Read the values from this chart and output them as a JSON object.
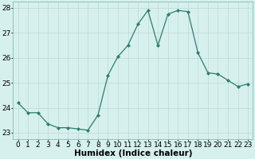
{
  "xlabel": "Humidex (Indice chaleur)",
  "x": [
    0,
    1,
    2,
    3,
    4,
    5,
    6,
    7,
    8,
    9,
    10,
    11,
    12,
    13,
    14,
    15,
    16,
    17,
    18,
    19,
    20,
    21,
    22,
    23
  ],
  "y": [
    24.2,
    23.8,
    23.8,
    23.35,
    23.2,
    23.2,
    23.15,
    23.1,
    23.7,
    25.3,
    26.05,
    26.5,
    27.35,
    27.9,
    26.5,
    27.75,
    27.9,
    27.85,
    26.2,
    25.4,
    25.35,
    25.1,
    24.85,
    24.95
  ],
  "ylim": [
    22.75,
    28.25
  ],
  "xlim": [
    -0.5,
    23.5
  ],
  "yticks": [
    23,
    24,
    25,
    26,
    27,
    28
  ],
  "line_color": "#2e7d6e",
  "bg_color": "#d6f0ee",
  "grid_color": "#c0d8d6",
  "label_color": "#000000",
  "tick_fontsize": 6.5,
  "label_fontsize": 7.5
}
